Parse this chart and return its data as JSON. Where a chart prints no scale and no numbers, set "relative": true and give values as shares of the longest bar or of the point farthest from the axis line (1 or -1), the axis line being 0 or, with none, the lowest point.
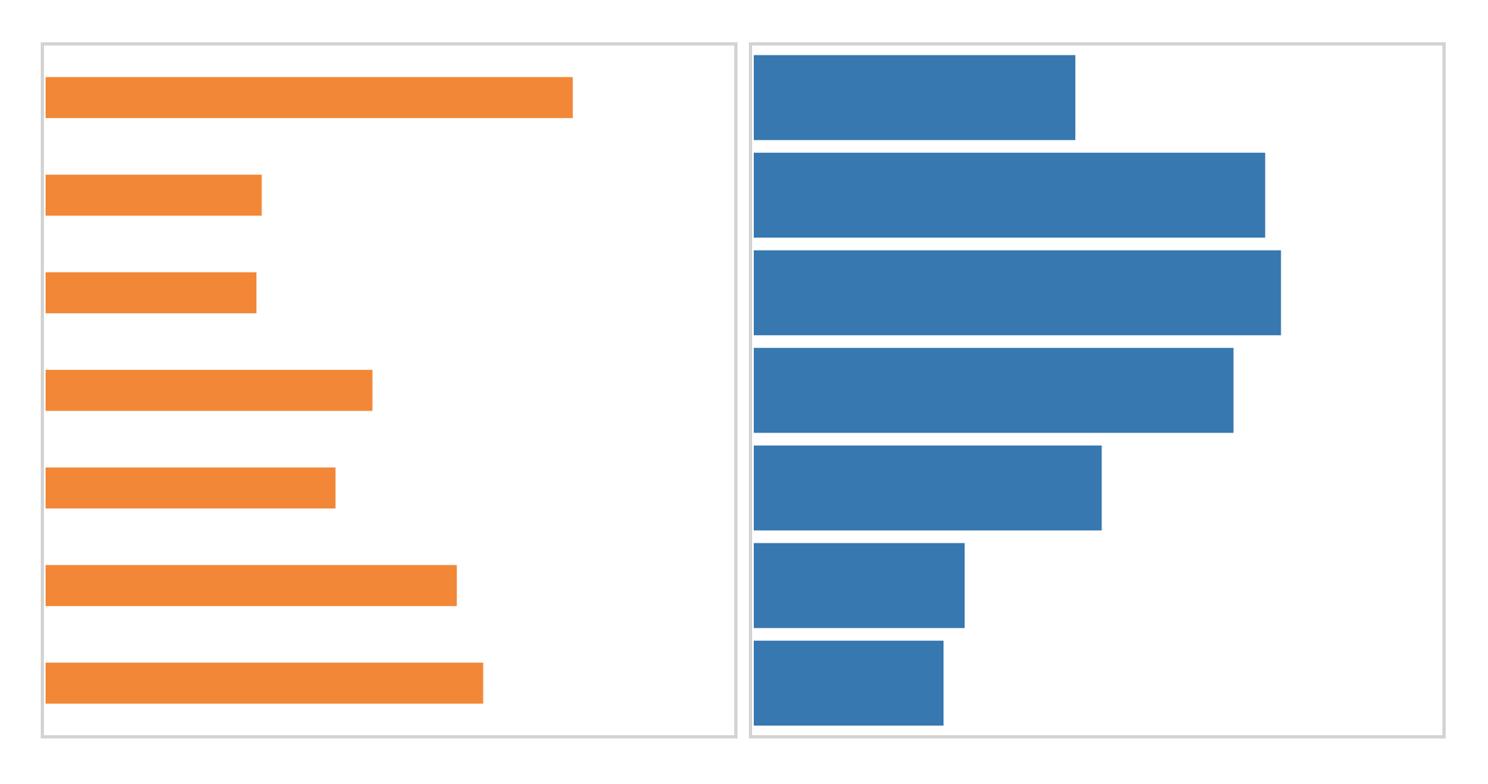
{
  "chart_data": [
    {
      "type": "bar",
      "orientation": "horizontal",
      "relative": true,
      "tick_labels": false,
      "grid": false,
      "legend": false,
      "categories": [
        null,
        null,
        null,
        null,
        null,
        null,
        null
      ],
      "color": "#f28837",
      "values": [
        1,
        0.41,
        0.4,
        0.62,
        0.55,
        0.78,
        0.83
      ]
    },
    {
      "type": "bar",
      "orientation": "horizontal",
      "relative": true,
      "tick_labels": false,
      "grid": false,
      "legend": false,
      "categories": [
        null,
        null,
        null,
        null,
        null,
        null,
        null
      ],
      "color": "#3778b0",
      "values": [
        0.61,
        0.97,
        1,
        0.91,
        0.66,
        0.4,
        0.36
      ]
    }
  ]
}
